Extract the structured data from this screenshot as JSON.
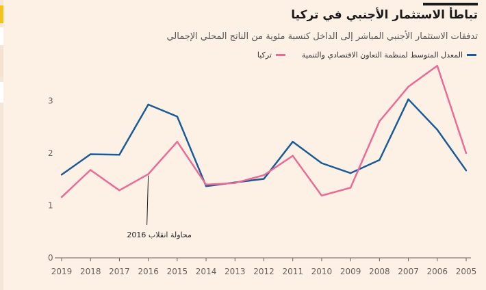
{
  "chart_data": {
    "type": "line",
    "title": "تباطأ الاستثمار الأجنبي في تركيا",
    "subtitle": "تدفقات الاستثمار الأجنبي المباشر إلى الداخل كنسبة مئوية من الناتج المحلي الإجمالي",
    "x": [
      "2019",
      "2018",
      "2017",
      "2016",
      "2015",
      "2014",
      "2013",
      "2012",
      "2011",
      "2010",
      "2009",
      "2008",
      "2007",
      "2006",
      "2005"
    ],
    "series": [
      {
        "name": "المعدل المتوسط لمنظمة التعاون الاقتصادي والتنمية",
        "color": "#1a5a96",
        "values": [
          1.59,
          1.98,
          1.97,
          2.93,
          2.7,
          1.37,
          1.44,
          1.51,
          2.22,
          1.81,
          1.62,
          1.87,
          3.03,
          2.45,
          1.67
        ]
      },
      {
        "name": "تركيا",
        "color": "#ec6a96",
        "values": [
          1.16,
          1.68,
          1.29,
          1.6,
          2.22,
          1.4,
          1.43,
          1.58,
          1.95,
          1.19,
          1.34,
          2.61,
          3.27,
          3.67,
          2.0
        ]
      }
    ],
    "y_ticks": [
      "0",
      "1",
      "2",
      "3"
    ],
    "ylim": [
      0,
      3.8
    ],
    "annotations": [
      {
        "text": "محاولة انقلاب 2016",
        "x": "2016"
      }
    ],
    "grid": false,
    "legend_position": "top-right"
  }
}
